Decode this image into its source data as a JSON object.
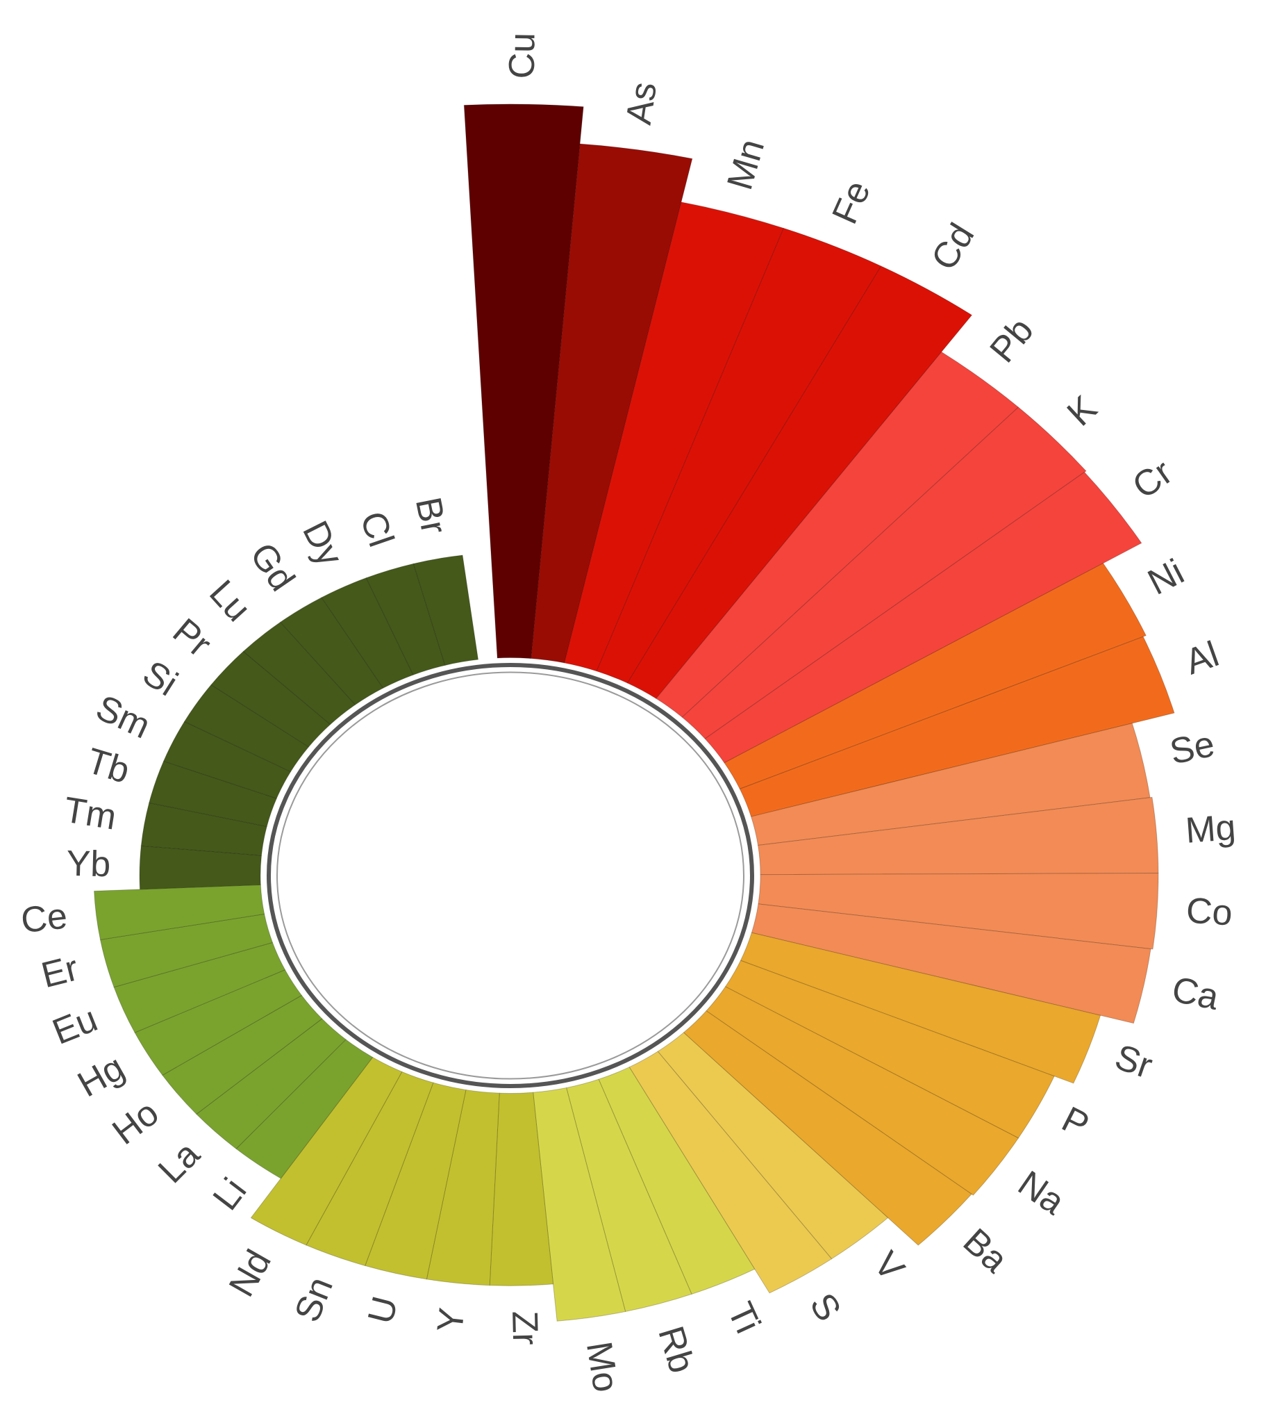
{
  "chart_data": {
    "type": "radial_bar",
    "categories": [
      "Cu",
      "As",
      "Mn",
      "Fe",
      "Cd",
      "Pb",
      "K",
      "Cr",
      "Ni",
      "Al",
      "Se",
      "Mg",
      "Co",
      "Ca",
      "Sr",
      "P",
      "Na",
      "Ba",
      "V",
      "S",
      "Ti",
      "Rb",
      "Mo",
      "Zr",
      "Y",
      "U",
      "Sn",
      "Nd",
      "Li",
      "La",
      "Ho",
      "Hg",
      "Eu",
      "Er",
      "Ce",
      "Yb",
      "Tm",
      "Tb",
      "Sm",
      "Si",
      "Pr",
      "Lu",
      "Gd",
      "Dy",
      "Cl",
      "Br"
    ],
    "values": [
      610,
      569,
      520,
      520,
      520,
      470,
      470,
      468,
      425,
      422,
      380,
      382,
      382,
      380,
      347,
      327,
      327,
      325,
      283,
      283,
      253,
      253,
      253,
      212,
      212,
      212,
      212,
      212,
      160,
      160,
      160,
      160,
      160,
      160,
      160,
      116,
      116,
      116,
      116,
      116,
      116,
      116,
      116,
      116,
      116,
      116
    ],
    "colors": [
      "#5e0000",
      "#990c04",
      "#dc1106",
      "#dc1106",
      "#dc1106",
      "#f5443c",
      "#f5443c",
      "#f5443c",
      "#f26b1c",
      "#f26b1c",
      "#f28b55",
      "#f28b55",
      "#f28b55",
      "#f28b55",
      "#eaa82c",
      "#eaa82c",
      "#eaa82c",
      "#eaa82c",
      "#ecca50",
      "#ecca50",
      "#d6d64a",
      "#d6d64a",
      "#d6d64a",
      "#c2c02e",
      "#c2c02e",
      "#c2c02e",
      "#c2c02e",
      "#c2c02e",
      "#7aa32e",
      "#7aa32e",
      "#7aa32e",
      "#7aa32e",
      "#7aa32e",
      "#7aa32e",
      "#7aa32e",
      "#45591a",
      "#45591a",
      "#45591a",
      "#45591a",
      "#45591a",
      "#45591a",
      "#45591a",
      "#45591a",
      "#45591a",
      "#45591a",
      "#45591a"
    ]
  }
}
